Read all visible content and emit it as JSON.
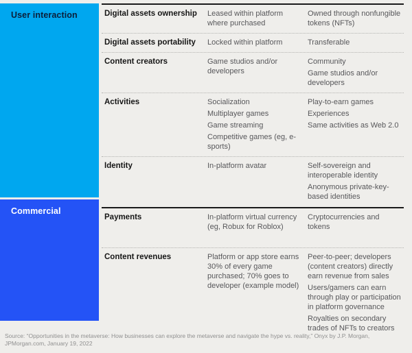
{
  "colors": {
    "user_interaction_bg": "#00a7ef",
    "commercial_bg": "#2453f6",
    "page_bg": "#efeeeb",
    "rule_solid": "#1a1a1a",
    "rule_dotted": "#b3b3b0",
    "feature_text": "#161616",
    "cell_text": "#57575a"
  },
  "chart_data": {
    "type": "table",
    "sections": [
      {
        "label": "User interaction",
        "rows": [
          {
            "feature": "Digital assets ownership",
            "col2": [
              "Leased within platform where purchased"
            ],
            "col3": [
              "Owned through nonfungible tokens (NFTs)"
            ]
          },
          {
            "feature": "Digital assets portability",
            "col2": [
              "Locked within platform"
            ],
            "col3": [
              "Transferable"
            ]
          },
          {
            "feature": "Content creators",
            "col2": [
              "Game studios and/or developers"
            ],
            "col3": [
              "Community",
              "Game studios and/or developers"
            ]
          },
          {
            "feature": "Activities",
            "col2": [
              "Socialization",
              "Multiplayer games",
              "Game streaming",
              "Competitive games (eg, e-sports)"
            ],
            "col3": [
              "Play-to-earn games",
              "Experiences",
              "Same activities as Web 2.0"
            ]
          },
          {
            "feature": "Identity",
            "col2": [
              "In-platform avatar"
            ],
            "col3": [
              "Self-sovereign and interoperable identity",
              "Anonymous private-key-based identities"
            ]
          }
        ]
      },
      {
        "label": "Commercial",
        "rows": [
          {
            "feature": "Payments",
            "col2": [
              "In-platform virtual currency (eg, Robux for Roblox)"
            ],
            "col3": [
              "Cryptocurrencies and tokens"
            ]
          },
          {
            "feature": "Content revenues",
            "col2": [
              "Platform or app store earns 30% of every game purchased; 70% goes to developer (example model)"
            ],
            "col3": [
              "Peer-to-peer; developers (content creators) directly earn revenue from sales",
              "Users/gamers can earn through play or participation in platform governance",
              "Royalties on secondary trades of NFTs to creators"
            ]
          }
        ]
      }
    ]
  },
  "footer": {
    "source": "Source: “Opportunities in the metaverse: How businesses can explore the metaverse and navigate the hype vs. reality,” Onyx by J.P. Morgan, JPMorgan.com, January 19, 2022"
  }
}
